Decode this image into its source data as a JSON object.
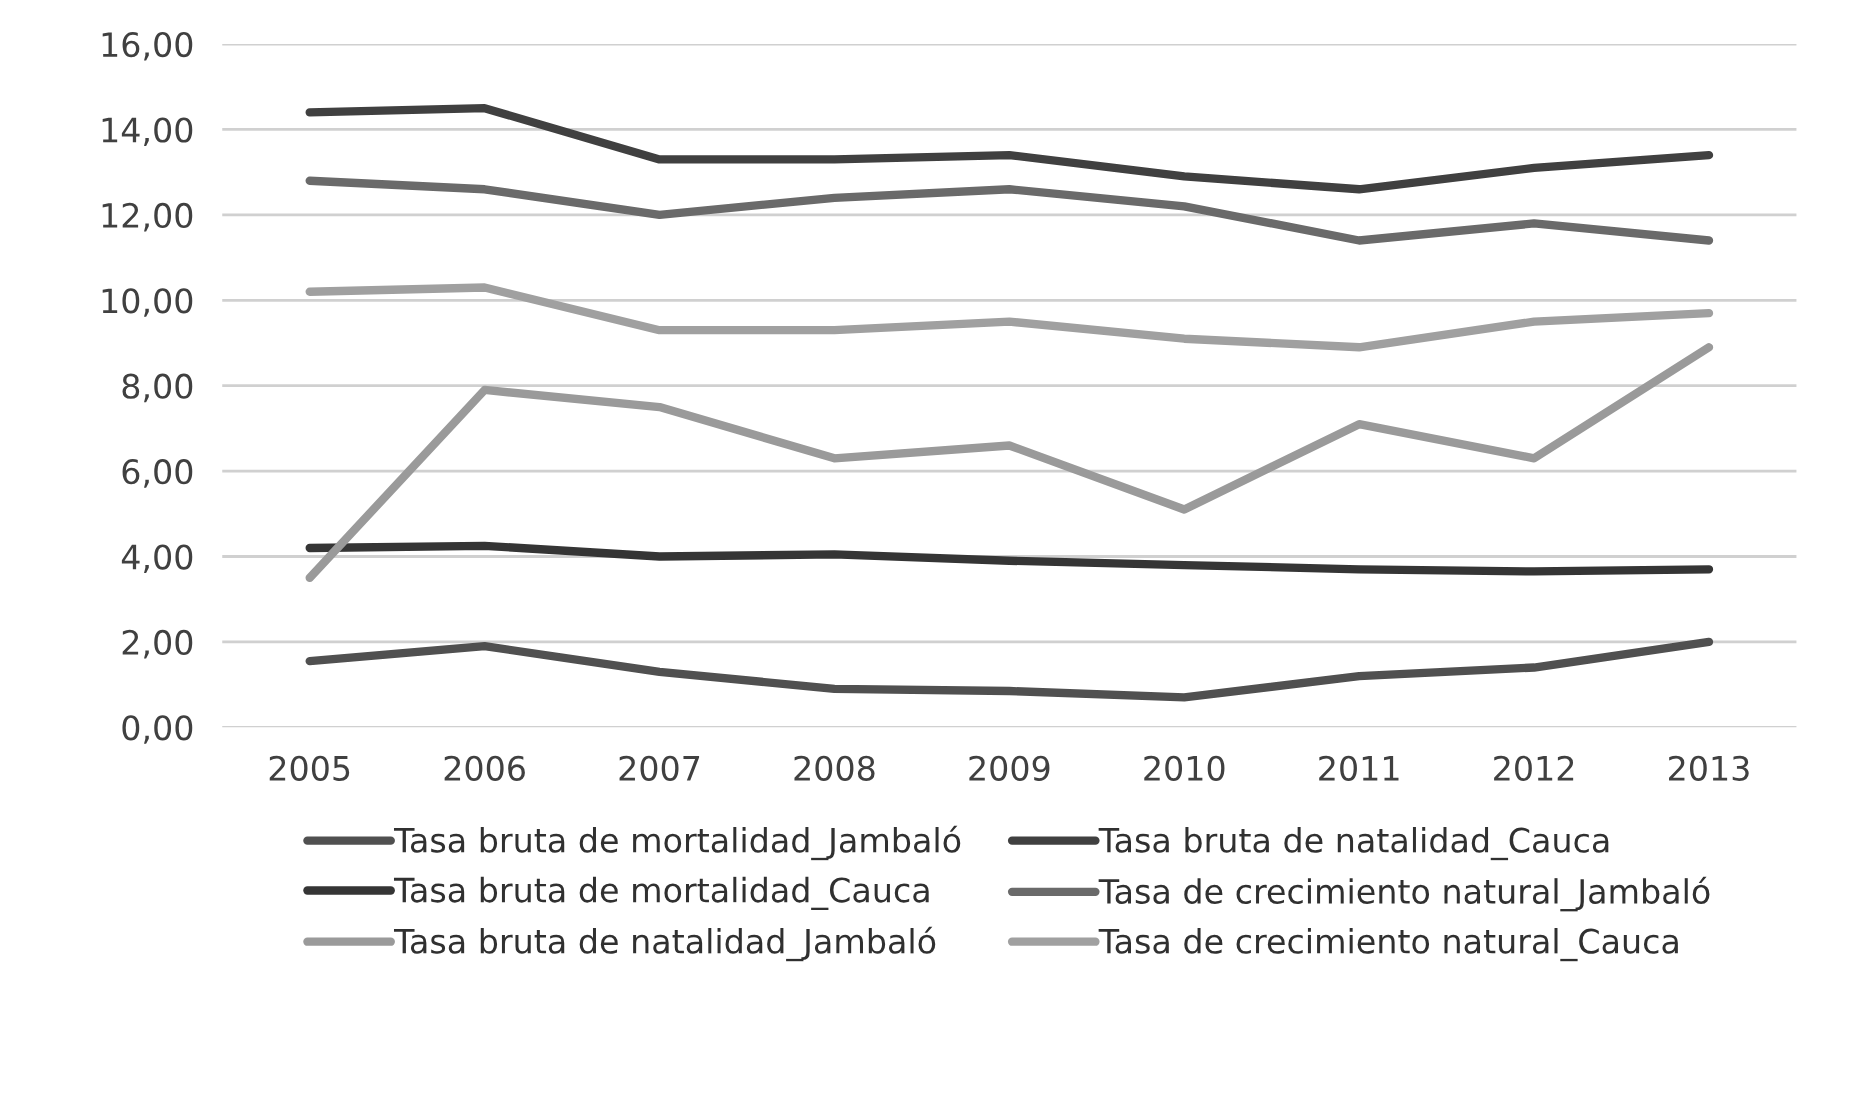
{
  "chart_data": {
    "type": "line",
    "categories": [
      "2005",
      "2006",
      "2007",
      "2008",
      "2009",
      "2010",
      "2011",
      "2012",
      "2013"
    ],
    "series": [
      {
        "name": "Tasa bruta de mortalidad_Jambaló",
        "color": "#505050",
        "values": [
          1.55,
          1.9,
          1.3,
          0.9,
          0.85,
          0.7,
          1.2,
          1.4,
          2.0
        ]
      },
      {
        "name": "Tasa bruta de mortalidad_Cauca",
        "color": "#353535",
        "values": [
          4.2,
          4.25,
          4.0,
          4.05,
          3.9,
          3.8,
          3.7,
          3.65,
          3.7
        ]
      },
      {
        "name": "Tasa bruta de natalidad_Jambaló",
        "color": "#9a9a9a",
        "values": [
          3.5,
          7.9,
          7.5,
          6.3,
          6.6,
          5.1,
          7.1,
          6.3,
          8.9
        ]
      },
      {
        "name": "Tasa bruta de natalidad_Cauca",
        "color": "#404040",
        "values": [
          14.4,
          14.5,
          13.3,
          13.3,
          13.4,
          12.9,
          12.6,
          13.1,
          13.4
        ]
      },
      {
        "name": "Tasa de crecimiento natural_Jambaló",
        "color": "#6a6a6a",
        "values": [
          12.8,
          12.6,
          12.0,
          12.4,
          12.6,
          12.2,
          11.4,
          11.8,
          11.4
        ]
      },
      {
        "name": "Tasa de crecimiento natural_Cauca",
        "color": "#a0a0a0",
        "values": [
          10.2,
          10.3,
          9.3,
          9.3,
          9.5,
          9.1,
          8.9,
          9.5,
          9.7
        ]
      }
    ],
    "ylim": [
      0,
      16
    ],
    "yticks": [
      {
        "value": 0,
        "label": "0,00"
      },
      {
        "value": 2,
        "label": "2,00"
      },
      {
        "value": 4,
        "label": "4,00"
      },
      {
        "value": 6,
        "label": "6,00"
      },
      {
        "value": 8,
        "label": "8,00"
      },
      {
        "value": 10,
        "label": "10,00"
      },
      {
        "value": 12,
        "label": "12,00"
      },
      {
        "value": 14,
        "label": "14,00"
      },
      {
        "value": 16,
        "label": "16,00"
      }
    ],
    "grid": "y",
    "legend": "bottom",
    "marker": "none",
    "line_style": "solid"
  }
}
